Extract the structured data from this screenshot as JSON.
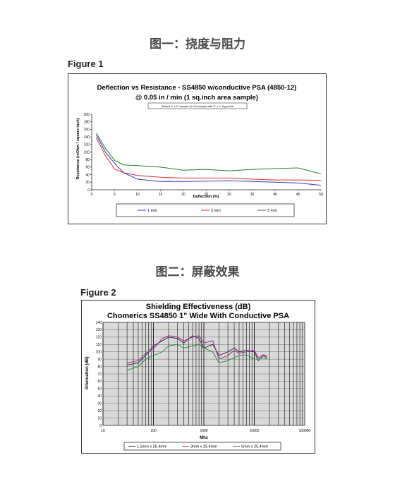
{
  "section1": {
    "heading": "图一：挠度与阻力",
    "figure_label": "Figure 1"
  },
  "section2": {
    "heading": "图二：屏蔽效果",
    "figure_label": "Figure 2"
  },
  "chart_data": [
    {
      "type": "line",
      "title": "Deflection vs Resistance -  SS4850 w/conductive PSA (4850-12)",
      "subtitle": "@  0.05 in / min (1 sq.inch area sample)",
      "note": "Tested 1\" x 1\" sample (1 in²) sample with 1\" x 1\" Ag probe",
      "xlabel": "Deflection (%)",
      "ylabel": "Resistance (mOhm / square inch)",
      "xlim": [
        0,
        50
      ],
      "ylim": [
        0,
        200
      ],
      "xticks": [
        0,
        5,
        10,
        15,
        20,
        25,
        30,
        35,
        40,
        45,
        50
      ],
      "yticks": [
        0,
        20,
        40,
        60,
        80,
        100,
        120,
        140,
        160,
        180,
        200
      ],
      "grid": false,
      "legend_position": "bottom",
      "series": [
        {
          "name": "1 mm",
          "color": "#3a3ab0",
          "x": [
            1,
            3,
            5,
            7,
            10,
            15,
            20,
            25,
            30,
            35,
            40,
            45,
            50
          ],
          "y": [
            145,
            100,
            70,
            45,
            28,
            22,
            22,
            23,
            24,
            22,
            20,
            18,
            12
          ]
        },
        {
          "name": "3 mm",
          "color": "#d03030",
          "x": [
            1,
            3,
            5,
            7,
            10,
            15,
            20,
            25,
            30,
            35,
            40,
            45,
            50
          ],
          "y": [
            138,
            90,
            55,
            45,
            38,
            33,
            31,
            31,
            31,
            28,
            26,
            26,
            25
          ]
        },
        {
          "name": "5 mm",
          "color": "#2a7a2a",
          "x": [
            1,
            3,
            5,
            7,
            10,
            15,
            20,
            25,
            30,
            35,
            40,
            45,
            50
          ],
          "y": [
            150,
            110,
            78,
            66,
            64,
            60,
            52,
            54,
            50,
            54,
            56,
            58,
            42
          ]
        }
      ]
    },
    {
      "type": "line",
      "title": "Shielding Effectiveness (dB)",
      "subtitle": "Chomerics  SS4850 1\" Wide With Conductive PSA",
      "xlabel": "Mhz",
      "ylabel": "Attenuation (dB)",
      "xscale": "log",
      "xlim": [
        10,
        100000
      ],
      "ylim": [
        0,
        140
      ],
      "xticks": [
        10,
        100,
        1000,
        10000,
        100000
      ],
      "yticks": [
        0,
        10,
        20,
        30,
        40,
        50,
        60,
        70,
        80,
        90,
        100,
        110,
        120,
        130,
        140
      ],
      "grid": true,
      "legend_position": "bottom",
      "series": [
        {
          "name": "1.5mm x 25.4mm",
          "color": "#303030",
          "x": [
            30,
            50,
            70,
            100,
            150,
            200,
            300,
            400,
            600,
            800,
            1000,
            1500,
            2000,
            3000,
            4000,
            5000,
            7000,
            10000,
            12000,
            15000,
            18000
          ],
          "y": [
            82,
            85,
            95,
            108,
            115,
            120,
            118,
            112,
            122,
            118,
            105,
            110,
            95,
            100,
            105,
            100,
            102,
            100,
            88,
            95,
            92
          ]
        },
        {
          "name": "3mm x 25.4mm",
          "color": "#a02a9a",
          "x": [
            30,
            50,
            70,
            100,
            150,
            200,
            300,
            400,
            600,
            800,
            1000,
            1500,
            2000,
            3000,
            4000,
            5000,
            7000,
            10000,
            12000,
            15000,
            18000
          ],
          "y": [
            85,
            88,
            98,
            104,
            118,
            122,
            120,
            115,
            120,
            122,
            112,
            115,
            90,
            95,
            102,
            98,
            100,
            102,
            92,
            96,
            94
          ]
        },
        {
          "name": "5mm x 25.4mm",
          "color": "#2e8b3a",
          "x": [
            30,
            50,
            70,
            100,
            150,
            200,
            300,
            400,
            600,
            800,
            1000,
            1500,
            2000,
            3000,
            4000,
            5000,
            7000,
            10000,
            12000,
            15000,
            18000
          ],
          "y": [
            75,
            80,
            90,
            95,
            100,
            108,
            110,
            105,
            108,
            110,
            105,
            100,
            85,
            88,
            92,
            95,
            96,
            90,
            90,
            92,
            90
          ]
        }
      ]
    }
  ]
}
